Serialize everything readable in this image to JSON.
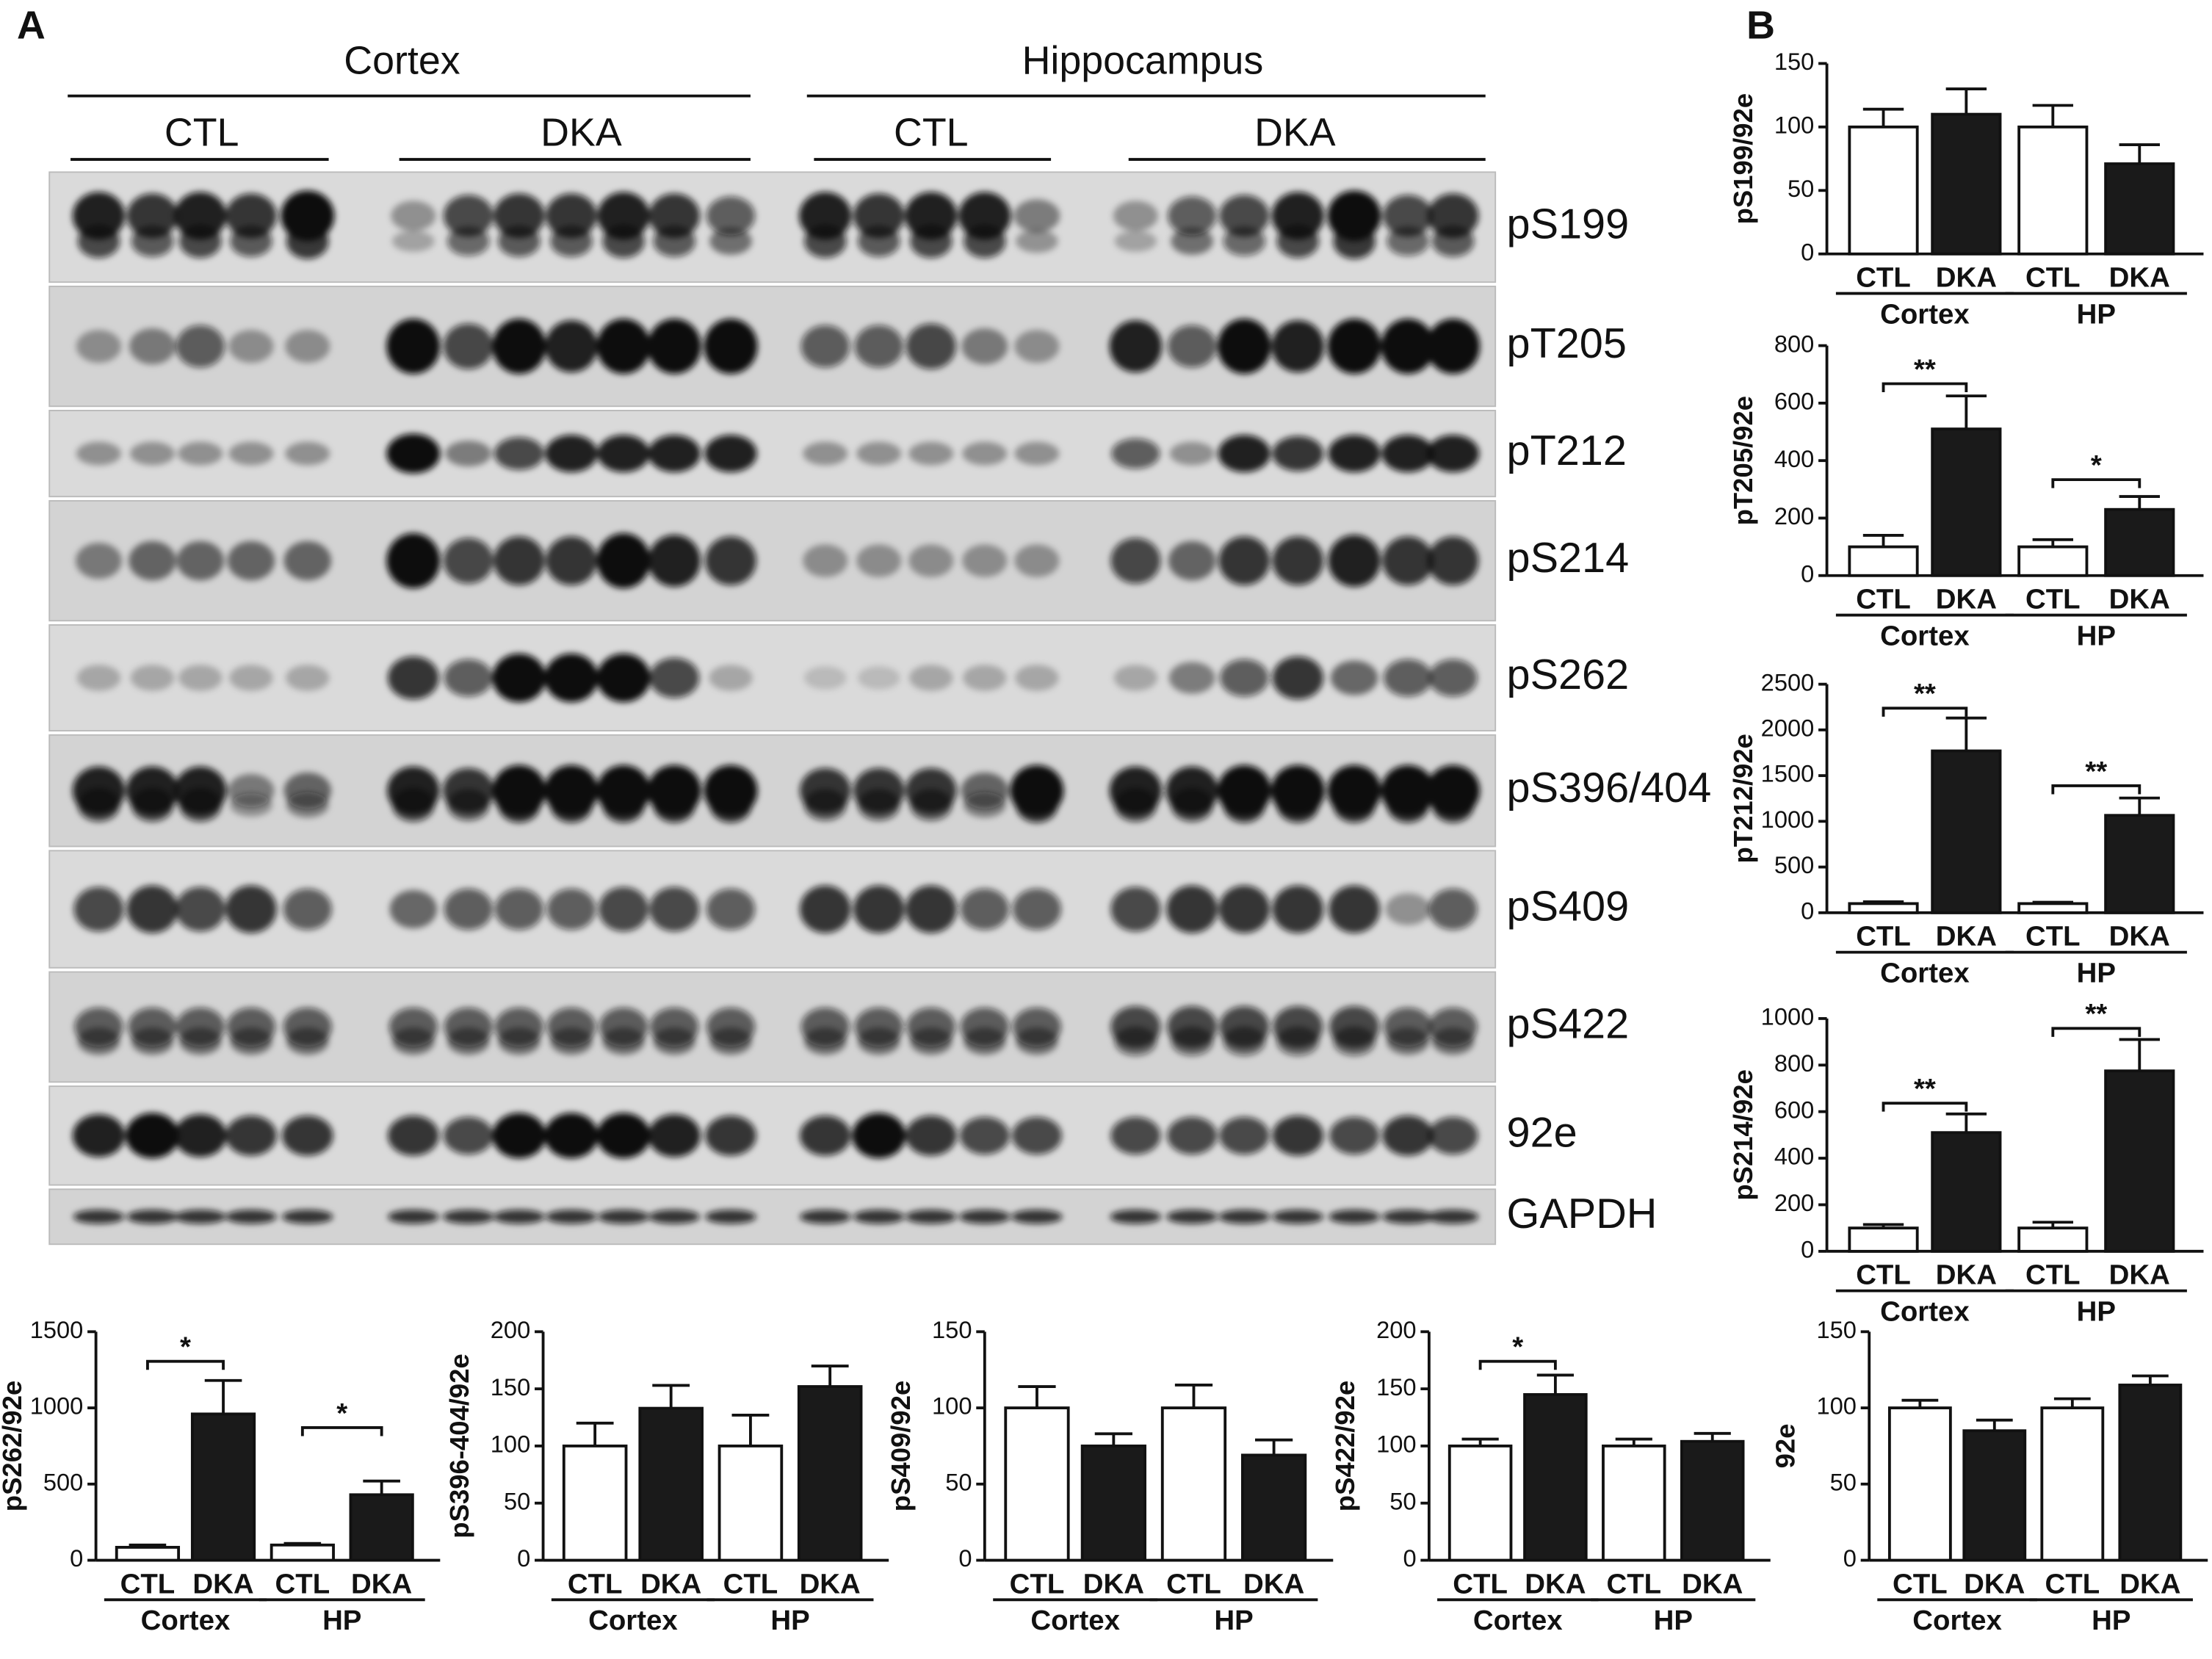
{
  "panels": [
    "A",
    "B"
  ],
  "blot": {
    "regions": [
      "Cortex",
      "Hippocampus"
    ],
    "groups": [
      "CTL",
      "DKA",
      "CTL",
      "DKA"
    ],
    "rows": [
      "pS199",
      "pT205",
      "pT212",
      "pS214",
      "pS262",
      "pS396/404",
      "pS409",
      "pS422",
      "92e",
      "GAPDH"
    ]
  },
  "chart_data": [
    {
      "type": "bar",
      "ylabel": "pS199/92e",
      "categories": [
        "CTL",
        "DKA",
        "CTL",
        "DKA"
      ],
      "groups": [
        "Cortex",
        "HP"
      ],
      "values": [
        100,
        110,
        100,
        71
      ],
      "errors": [
        14,
        20,
        17,
        15
      ],
      "colors": [
        "#ffffff",
        "#1a1a1a",
        "#ffffff",
        "#1a1a1a"
      ],
      "ylim": [
        0,
        150
      ],
      "yticks": [
        0,
        50,
        100,
        150
      ],
      "annotations": []
    },
    {
      "type": "bar",
      "ylabel": "pT205/92e",
      "categories": [
        "CTL",
        "DKA",
        "CTL",
        "DKA"
      ],
      "groups": [
        "Cortex",
        "HP"
      ],
      "values": [
        100,
        510,
        100,
        230
      ],
      "errors": [
        40,
        115,
        25,
        45
      ],
      "colors": [
        "#ffffff",
        "#1a1a1a",
        "#ffffff",
        "#1a1a1a"
      ],
      "ylim": [
        0,
        800
      ],
      "yticks": [
        0,
        200,
        400,
        600,
        800
      ],
      "annotations": [
        "**",
        "*"
      ]
    },
    {
      "type": "bar",
      "ylabel": "pT212/92e",
      "categories": [
        "CTL",
        "DKA",
        "CTL",
        "DKA"
      ],
      "groups": [
        "Cortex",
        "HP"
      ],
      "values": [
        100,
        1770,
        100,
        1065
      ],
      "errors": [
        20,
        360,
        15,
        190
      ],
      "colors": [
        "#ffffff",
        "#1a1a1a",
        "#ffffff",
        "#1a1a1a"
      ],
      "ylim": [
        0,
        2500
      ],
      "yticks": [
        0,
        500,
        1000,
        1500,
        2000,
        2500
      ],
      "annotations": [
        "**",
        "**"
      ]
    },
    {
      "type": "bar",
      "ylabel": "pS214/92e",
      "categories": [
        "CTL",
        "DKA",
        "CTL",
        "DKA"
      ],
      "groups": [
        "Cortex",
        "HP"
      ],
      "values": [
        100,
        510,
        100,
        775
      ],
      "errors": [
        15,
        80,
        25,
        135
      ],
      "colors": [
        "#ffffff",
        "#1a1a1a",
        "#ffffff",
        "#1a1a1a"
      ],
      "ylim": [
        0,
        1000
      ],
      "yticks": [
        0,
        200,
        400,
        600,
        800,
        1000
      ],
      "annotations": [
        "**",
        "**"
      ]
    },
    {
      "type": "bar",
      "ylabel": "pS262/92e",
      "categories": [
        "CTL",
        "DKA",
        "CTL",
        "DKA"
      ],
      "groups": [
        "Cortex",
        "HP"
      ],
      "values": [
        85,
        960,
        100,
        430
      ],
      "errors": [
        15,
        220,
        10,
        90
      ],
      "colors": [
        "#ffffff",
        "#1a1a1a",
        "#ffffff",
        "#1a1a1a"
      ],
      "ylim": [
        0,
        1500
      ],
      "yticks": [
        0,
        500,
        1000,
        1500
      ],
      "annotations": [
        "*",
        "*"
      ]
    },
    {
      "type": "bar",
      "ylabel": "pS396-404/92e",
      "categories": [
        "CTL",
        "DKA",
        "CTL",
        "DKA"
      ],
      "groups": [
        "Cortex",
        "HP"
      ],
      "values": [
        100,
        133,
        100,
        152
      ],
      "errors": [
        20,
        20,
        27,
        18
      ],
      "colors": [
        "#ffffff",
        "#1a1a1a",
        "#ffffff",
        "#1a1a1a"
      ],
      "ylim": [
        0,
        200
      ],
      "yticks": [
        0,
        50,
        100,
        150,
        200
      ],
      "annotations": []
    },
    {
      "type": "bar",
      "ylabel": "pS409/92e",
      "categories": [
        "CTL",
        "DKA",
        "CTL",
        "DKA"
      ],
      "groups": [
        "Cortex",
        "HP"
      ],
      "values": [
        100,
        75,
        100,
        69
      ],
      "errors": [
        14,
        8,
        15,
        10
      ],
      "colors": [
        "#ffffff",
        "#1a1a1a",
        "#ffffff",
        "#1a1a1a"
      ],
      "ylim": [
        0,
        150
      ],
      "yticks": [
        0,
        50,
        100,
        150
      ],
      "annotations": []
    },
    {
      "type": "bar",
      "ylabel": "pS422/92e",
      "categories": [
        "CTL",
        "DKA",
        "CTL",
        "DKA"
      ],
      "groups": [
        "Cortex",
        "HP"
      ],
      "values": [
        100,
        145,
        100,
        104
      ],
      "errors": [
        6,
        17,
        6,
        7
      ],
      "colors": [
        "#ffffff",
        "#1a1a1a",
        "#ffffff",
        "#1a1a1a"
      ],
      "ylim": [
        0,
        200
      ],
      "yticks": [
        0,
        50,
        100,
        150,
        200
      ],
      "annotations": [
        "*"
      ]
    },
    {
      "type": "bar",
      "ylabel": "92e",
      "categories": [
        "CTL",
        "DKA",
        "CTL",
        "DKA"
      ],
      "groups": [
        "Cortex",
        "HP"
      ],
      "values": [
        100,
        85,
        100,
        115
      ],
      "errors": [
        5,
        7,
        6,
        6
      ],
      "colors": [
        "#ffffff",
        "#1a1a1a",
        "#ffffff",
        "#1a1a1a"
      ],
      "ylim": [
        0,
        150
      ],
      "yticks": [
        0,
        50,
        100,
        150
      ],
      "annotations": []
    }
  ]
}
